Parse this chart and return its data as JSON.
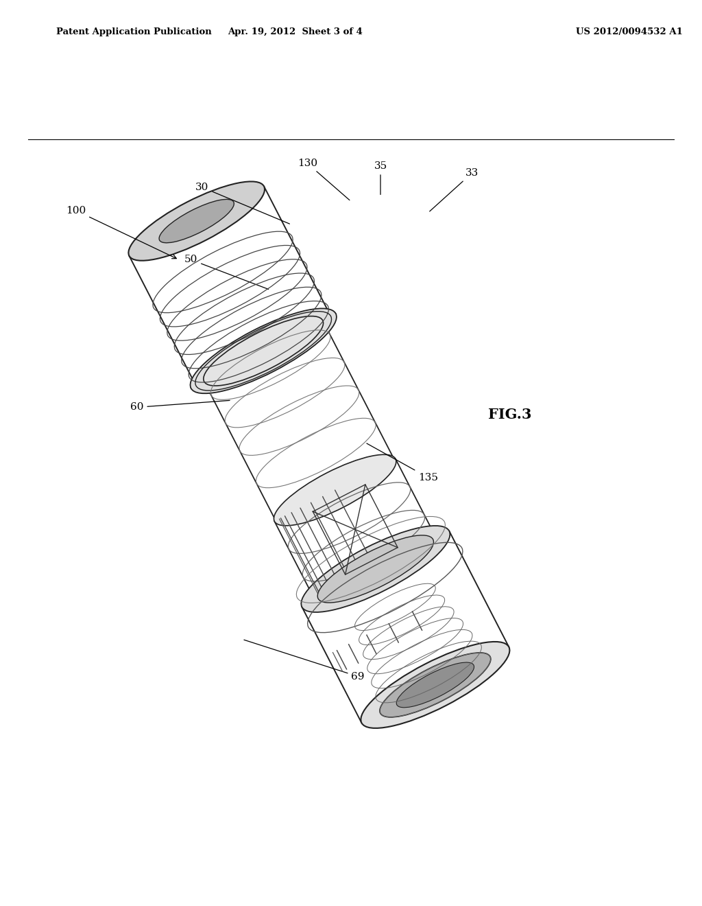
{
  "background_color": "#ffffff",
  "header_left": "Patent Application Publication",
  "header_center": "Apr. 19, 2012  Sheet 3 of 4",
  "header_right": "US 2012/0094532 A1",
  "fig_label": "FIG.3",
  "line_color": "#222222",
  "light_gray": "#e8e8e8",
  "mid_gray": "#cccccc",
  "dark_gray": "#555555"
}
